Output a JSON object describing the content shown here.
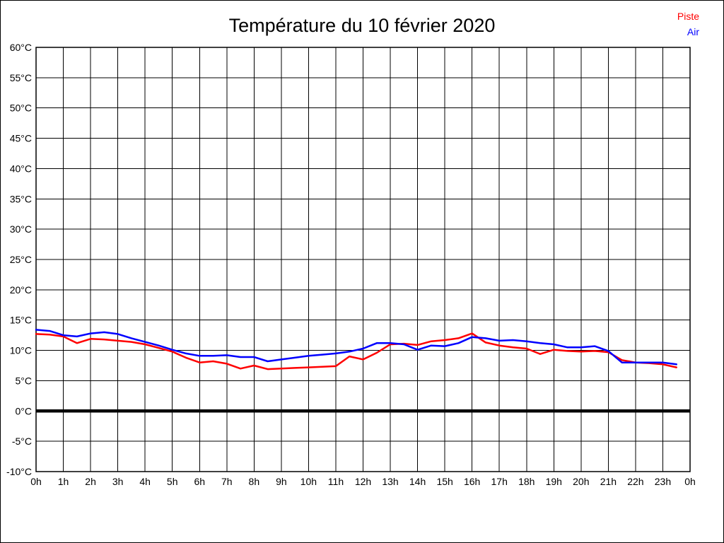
{
  "page": {
    "background": "#ffffff",
    "border_color": "#000000"
  },
  "header": {
    "title": "Température du 10 février 2020"
  },
  "legend": {
    "items": [
      {
        "label": "Piste",
        "color": "#ff0000"
      },
      {
        "label": "Air",
        "color": "#0000ff"
      }
    ]
  },
  "chart_data": {
    "type": "line",
    "title": "Température du 10 février 2020",
    "xlabel": "",
    "ylabel": "",
    "xlim": [
      0,
      24
    ],
    "ylim": [
      -10,
      60
    ],
    "grid": true,
    "x_tick_interval_hours": 1,
    "y_tick_interval_degrees": 5,
    "x_ticks": [
      "0h",
      "1h",
      "2h",
      "3h",
      "4h",
      "5h",
      "6h",
      "7h",
      "8h",
      "9h",
      "10h",
      "11h",
      "12h",
      "13h",
      "14h",
      "15h",
      "16h",
      "17h",
      "18h",
      "19h",
      "20h",
      "21h",
      "22h",
      "23h",
      "0h"
    ],
    "y_ticks": [
      "60°C",
      "55°C",
      "50°C",
      "45°C",
      "40°C",
      "35°C",
      "30°C",
      "25°C",
      "20°C",
      "15°C",
      "10°C",
      "5°C",
      "0°C",
      "-5°C",
      "-10°C"
    ],
    "zero_line": {
      "value": 0,
      "thick": true,
      "color": "#000000"
    },
    "legend_position": "top-right",
    "x": [
      0,
      0.5,
      1,
      1.5,
      2,
      2.5,
      3,
      3.5,
      4,
      4.5,
      5,
      5.5,
      6,
      6.5,
      7,
      7.5,
      8,
      8.5,
      9,
      9.5,
      10,
      10.5,
      11,
      11.5,
      12,
      12.5,
      13,
      13.5,
      14,
      14.5,
      15,
      15.5,
      16,
      16.5,
      17,
      17.5,
      18,
      18.5,
      19,
      19.5,
      20,
      20.5,
      21,
      21.5,
      22,
      22.5,
      23,
      23.5
    ],
    "series": [
      {
        "name": "Piste",
        "color": "#ff0000",
        "values": [
          12.7,
          12.6,
          12.3,
          11.2,
          11.9,
          11.8,
          11.6,
          11.4,
          11.0,
          10.4,
          9.8,
          8.8,
          8.0,
          8.2,
          7.8,
          7.0,
          7.5,
          6.9,
          7.0,
          7.1,
          7.2,
          7.3,
          7.4,
          9.0,
          8.5,
          9.6,
          11.0,
          11.1,
          10.9,
          11.5,
          11.7,
          12.0,
          12.8,
          11.3,
          10.8,
          10.5,
          10.3,
          9.4,
          10.1,
          9.9,
          9.8,
          9.9,
          9.7,
          8.4,
          8.0,
          7.9,
          7.7,
          7.2
        ]
      },
      {
        "name": "Air",
        "color": "#0000ff",
        "values": [
          13.4,
          13.2,
          12.5,
          12.3,
          12.8,
          13.0,
          12.7,
          12.0,
          11.4,
          10.8,
          10.1,
          9.5,
          9.1,
          9.1,
          9.2,
          8.9,
          8.9,
          8.2,
          8.5,
          8.8,
          9.1,
          9.3,
          9.5,
          9.8,
          10.3,
          11.2,
          11.2,
          11.0,
          10.1,
          10.8,
          10.7,
          11.2,
          12.2,
          12.0,
          11.6,
          11.7,
          11.5,
          11.2,
          11.0,
          10.5,
          10.5,
          10.7,
          9.9,
          8.0,
          8.0,
          8.0,
          8.0,
          7.7
        ]
      }
    ]
  }
}
